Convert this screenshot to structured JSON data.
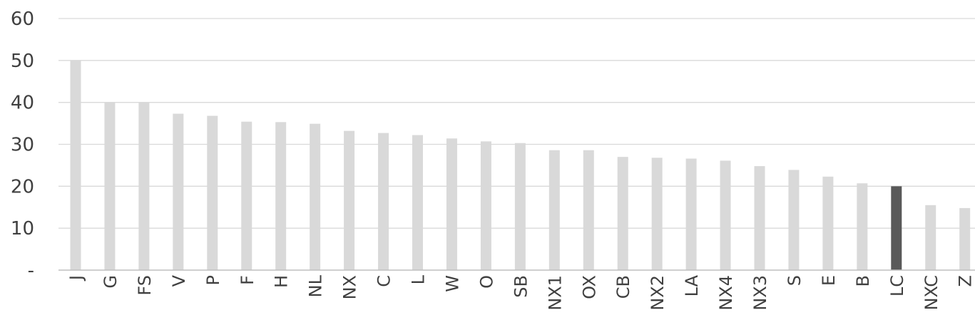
{
  "chart_data": {
    "type": "bar",
    "title": "",
    "xlabel": "",
    "ylabel": "",
    "ylim": [
      0,
      60
    ],
    "yticks": [
      0,
      10,
      20,
      30,
      40,
      50,
      60
    ],
    "ytick_labels": [
      "-",
      "10",
      "20",
      "30",
      "40",
      "50",
      "60"
    ],
    "grid": true,
    "categories": [
      "J",
      "G",
      "FS",
      "V",
      "P",
      "F",
      "H",
      "NL",
      "NX",
      "C",
      "L",
      "W",
      "O",
      "SB",
      "NX1",
      "OX",
      "CB",
      "NX2",
      "LA",
      "NX4",
      "NX3",
      "S",
      "E",
      "B",
      "LC",
      "NXC",
      "Z"
    ],
    "values": [
      50,
      40,
      40,
      37.3,
      36.8,
      35.4,
      35.3,
      34.9,
      33.2,
      32.7,
      32.2,
      31.4,
      30.7,
      30.3,
      28.6,
      28.6,
      27.0,
      26.8,
      26.6,
      26.1,
      24.8,
      23.9,
      22.3,
      20.7,
      20,
      15.5,
      14.8
    ],
    "highlight_category": "LC",
    "colors": {
      "bar": "#d9d9d9",
      "highlight": "#595959",
      "grid": "#d9d9d9",
      "axis": "#bfbfbf",
      "text": "#404040"
    }
  }
}
